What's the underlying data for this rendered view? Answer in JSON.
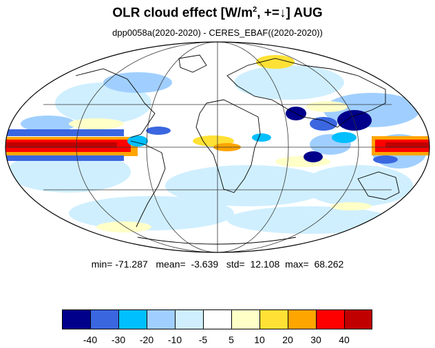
{
  "title": {
    "main": "OLR cloud effect [W/m",
    "sup": "2",
    "tail": ", +=↓]  AUG"
  },
  "subtitle": "dpp0058a(2020-2020) - CERES_EBAF((2020-2020))",
  "stats": {
    "min_label": "min=",
    "min": "-71.287",
    "mean_label": "mean=",
    "mean": "-3.639",
    "std_label": "std=",
    "std": "12.108",
    "max_label": "max=",
    "max": "68.262"
  },
  "colorbar": {
    "colors": [
      "#00008b",
      "#3a66e0",
      "#00bfff",
      "#a0cfff",
      "#cfefff",
      "#ffffff",
      "#ffffc8",
      "#ffe135",
      "#ffa500",
      "#ff0000",
      "#c00000"
    ],
    "labels": [
      "-40",
      "-30",
      "-20",
      "-10",
      "-5",
      "5",
      "10",
      "20",
      "30",
      "40"
    ]
  },
  "map": {
    "projection": "Mollweide",
    "features": {
      "tropical_band": {
        "color": "#ff0000",
        "region": "equatorial Pacific"
      },
      "indian_monsoon": {
        "color": "#00008b",
        "region": "Bay of Bengal / South Asia"
      },
      "background": "#ffffff"
    }
  }
}
